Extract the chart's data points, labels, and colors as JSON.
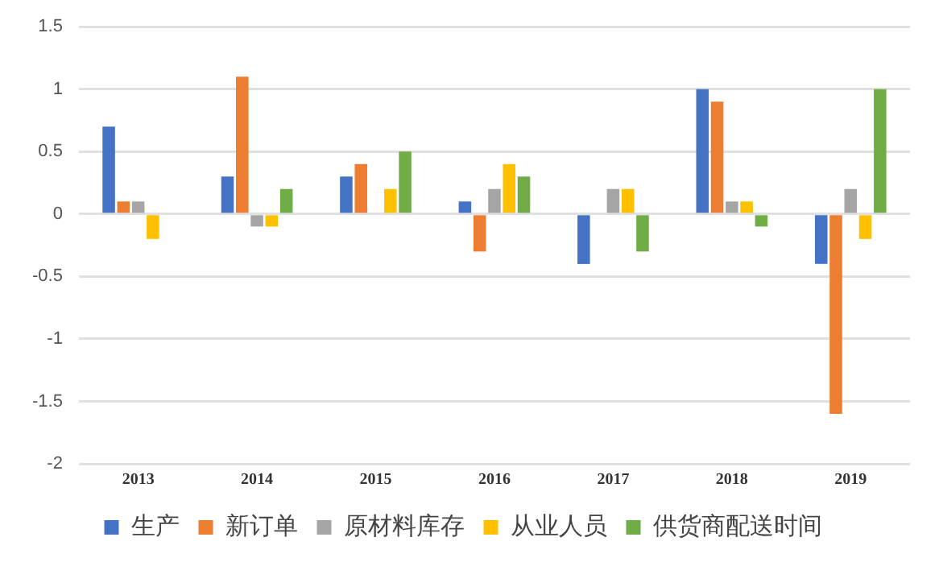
{
  "chart_data": {
    "type": "bar",
    "categories": [
      "2013",
      "2014",
      "2015",
      "2016",
      "2017",
      "2018",
      "2019"
    ],
    "series": [
      {
        "name": "生产",
        "color": "#4472c4",
        "values": [
          0.7,
          0.3,
          0.3,
          0.1,
          -0.4,
          1.0,
          -0.4
        ]
      },
      {
        "name": "新订单",
        "color": "#ed7d31",
        "values": [
          0.1,
          1.1,
          0.4,
          -0.3,
          0,
          0.9,
          -1.6
        ]
      },
      {
        "name": "原材料库存",
        "color": "#a5a5a5",
        "values": [
          0.1,
          -0.1,
          0,
          0.2,
          0.2,
          0.1,
          0.2
        ]
      },
      {
        "name": "从业人员",
        "color": "#ffc000",
        "values": [
          -0.2,
          -0.1,
          0.2,
          0.4,
          0.2,
          0.1,
          -0.2
        ]
      },
      {
        "name": "供货商配送时间",
        "color": "#70ad47",
        "values": [
          0,
          0.2,
          0.5,
          0.3,
          -0.3,
          -0.1,
          1.0
        ]
      }
    ],
    "ylim": [
      -2,
      1.5
    ],
    "yticks": [
      -2,
      -1.5,
      -1,
      -0.5,
      0,
      0.5,
      1,
      1.5
    ],
    "grid": "y",
    "legend": "bottom"
  }
}
